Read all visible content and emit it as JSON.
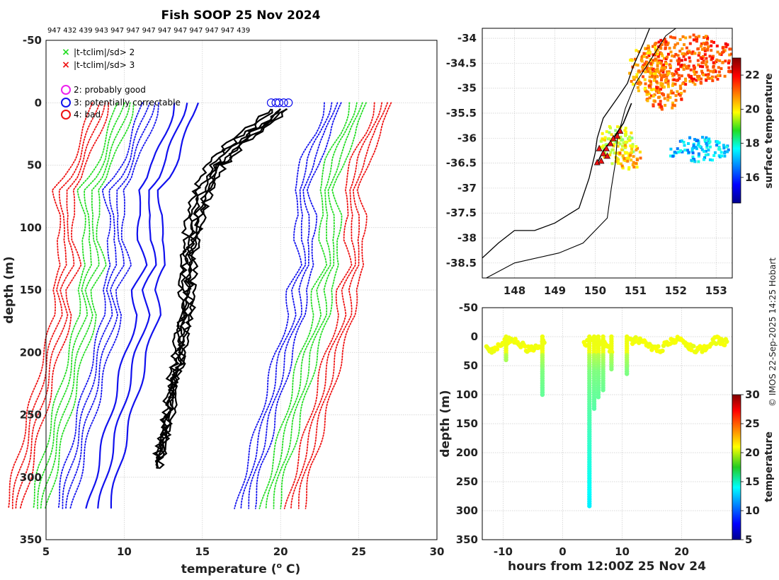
{
  "chart_data": [
    {
      "id": "profiles",
      "type": "line",
      "title": "Fish SOOP 25 Nov 2024",
      "subtitle": "947 432 439 943 947 947 947 947 947 947 947 947 439",
      "xlabel": "temperature (",
      "xlabel_sup": "o",
      "xlabel_end": " C)",
      "ylabel": "depth (m)",
      "xlim": [
        5,
        30
      ],
      "ylim": [
        350,
        -50
      ],
      "xticks": [
        "5",
        "10",
        "15",
        "20",
        "25",
        "30"
      ],
      "yticks": [
        "-50",
        "0",
        "50",
        "100",
        "150",
        "200",
        "250",
        "300",
        "350"
      ],
      "legend": [
        {
          "marker": "x",
          "color": "#22dd22",
          "label": "|t-tclim|/sd> 2"
        },
        {
          "marker": "x",
          "color": "#ee1111",
          "label": "|t-tclim|/sd> 3"
        },
        {
          "marker": "o",
          "color": "#ee22ee",
          "label": "2: probably good"
        },
        {
          "marker": "o",
          "color": "#1111ee",
          "label": "3: potentially correctable"
        },
        {
          "marker": "o",
          "color": "#ee1111",
          "label": "4: bad"
        }
      ],
      "climatology_envelope": {
        "depth": [
          0,
          10,
          25,
          45,
          60,
          70,
          90,
          110,
          130,
          150,
          170,
          200,
          230,
          260,
          290,
          325
        ],
        "t_left": [
          14.5,
          14.3,
          13.9,
          13.3,
          12.7,
          12.1,
          12.4,
          12.2,
          12.6,
          11.9,
          12.1,
          11.4,
          10.8,
          10.2,
          9.6,
          9.0
        ],
        "t_right": [
          20.5,
          20.3,
          19.9,
          19.1,
          18.7,
          18.5,
          18.9,
          18.6,
          18.9,
          18.2,
          18.2,
          17.4,
          16.8,
          16.2,
          15.5,
          14.9
        ],
        "red_offset": 5.5,
        "green_offset": 3.9,
        "blue_offset": 2.3,
        "blue_solid_offset": 1.3
      },
      "measured": {
        "depth": [
          0,
          10,
          20,
          30,
          40,
          50,
          60,
          70,
          80,
          90,
          100,
          120,
          140,
          160,
          180,
          200,
          230,
          260,
          295
        ],
        "t_base": [
          19.9,
          19.3,
          18.3,
          17.2,
          16.4,
          15.7,
          15.3,
          14.9,
          14.6,
          14.4,
          14.3,
          14.0,
          13.9,
          13.9,
          13.6,
          13.4,
          13.0,
          12.6,
          12.0
        ],
        "offsets": [
          -0.4,
          -0.1,
          0.2,
          0.4,
          0.6,
          0.8
        ]
      },
      "qc_circles_t": [
        19.4,
        19.7,
        19.9,
        20.2,
        20.5
      ]
    },
    {
      "id": "map",
      "type": "heatmap",
      "xlim": [
        147.2,
        153.4
      ],
      "ylim": [
        -38.8,
        -33.8
      ],
      "xticks": [
        "148",
        "149",
        "150",
        "151",
        "152",
        "153"
      ],
      "yticks": [
        "-34",
        "-34.5",
        "-35",
        "-35.5",
        "-36",
        "-36.5",
        "-37",
        "-37.5",
        "-38",
        "-38.5"
      ],
      "colorbar_label": "surface temperature",
      "colorbar_range": [
        14.5,
        23
      ],
      "colorbar_ticks": [
        "16",
        "18",
        "20",
        "22"
      ],
      "coastline": [
        [
          147.2,
          -38.4
        ],
        [
          147.6,
          -38.1
        ],
        [
          148.0,
          -37.85
        ],
        [
          148.5,
          -37.85
        ],
        [
          149.0,
          -37.7
        ],
        [
          149.6,
          -37.4
        ],
        [
          149.85,
          -36.8
        ],
        [
          150.0,
          -36.3
        ],
        [
          150.05,
          -36.0
        ],
        [
          150.2,
          -35.6
        ],
        [
          150.55,
          -35.2
        ],
        [
          150.8,
          -34.9
        ],
        [
          150.95,
          -34.55
        ],
        [
          151.2,
          -34.1
        ],
        [
          151.35,
          -33.8
        ]
      ],
      "shelf_edge": [
        [
          147.3,
          -38.8
        ],
        [
          148.0,
          -38.5
        ],
        [
          149.1,
          -38.3
        ],
        [
          149.7,
          -38.1
        ],
        [
          150.3,
          -37.6
        ],
        [
          150.4,
          -37.0
        ],
        [
          150.5,
          -36.5
        ],
        [
          150.55,
          -36.0
        ],
        [
          150.75,
          -35.4
        ],
        [
          151.0,
          -34.9
        ],
        [
          151.4,
          -34.4
        ],
        [
          151.75,
          -33.95
        ],
        [
          152.0,
          -33.8
        ]
      ],
      "ship_track": [
        [
          150.05,
          -36.5
        ],
        [
          150.2,
          -36.25
        ],
        [
          150.45,
          -36.0
        ],
        [
          150.7,
          -35.7
        ],
        [
          150.9,
          -35.3
        ]
      ],
      "triangles": [
        [
          150.05,
          -36.48
        ],
        [
          150.15,
          -36.45
        ],
        [
          150.2,
          -36.3
        ],
        [
          150.28,
          -36.2
        ],
        [
          150.38,
          -36.1
        ],
        [
          150.45,
          -36.0
        ],
        [
          150.55,
          -35.95
        ],
        [
          150.62,
          -35.85
        ],
        [
          150.3,
          -36.35
        ],
        [
          150.1,
          -36.2
        ]
      ]
    },
    {
      "id": "timeseries",
      "type": "scatter",
      "xlabel": "hours from 12:00Z 25 Nov 24",
      "ylabel": "depth (m)",
      "xlim": [
        -13.5,
        28.5
      ],
      "ylim": [
        350,
        -50
      ],
      "xticks": [
        "-10",
        "0",
        "10",
        "20"
      ],
      "yticks": [
        "-50",
        "0",
        "50",
        "100",
        "150",
        "200",
        "250",
        "300",
        "350"
      ],
      "colorbar_label": "temperature",
      "colorbar_range": [
        5,
        30
      ],
      "colorbar_ticks": [
        "5",
        "10",
        "15",
        "20",
        "25",
        "30"
      ],
      "casts": [
        {
          "hour": -9.5,
          "max_depth": 40
        },
        {
          "hour": -3.4,
          "max_depth": 102
        },
        {
          "hour": 4.5,
          "max_depth": 295
        },
        {
          "hour": 5.3,
          "max_depth": 125
        },
        {
          "hour": 6.0,
          "max_depth": 105
        },
        {
          "hour": 6.8,
          "max_depth": 92
        },
        {
          "hour": 8.2,
          "max_depth": 57
        },
        {
          "hour": 10.8,
          "max_depth": 65
        }
      ],
      "surface_segments": [
        [
          -12.8,
          -3.0
        ],
        [
          3.6,
          8.4
        ],
        [
          11.2,
          27.6
        ]
      ]
    }
  ],
  "credit": "© IMOS 22-Sep-2025 14:25 Hobart"
}
